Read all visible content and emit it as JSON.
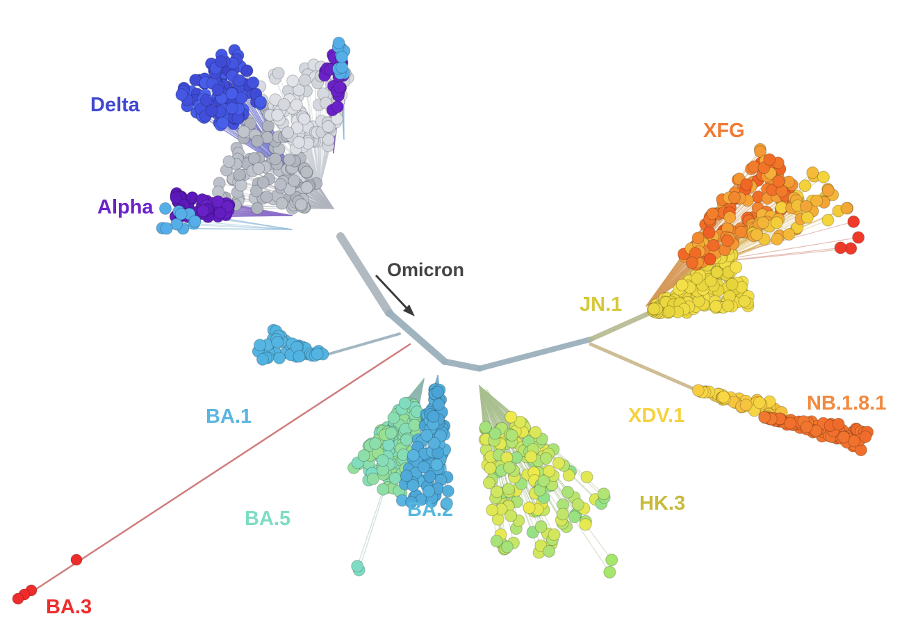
{
  "labels": {
    "delta": "Delta",
    "alpha": "Alpha",
    "omicron": "Omicron",
    "ba1": "BA.1",
    "ba5": "BA.5",
    "ba2": "BA.2",
    "ba3": "BA.3",
    "jn1": "JN.1",
    "xfg": "XFG",
    "xdv1": "XDV.1",
    "nb181": "NB.1.8.1",
    "hk3": "HK.3"
  },
  "colors": {
    "delta": "#3f47d0",
    "alpha": "#6a22c8",
    "omicron": "#444444",
    "ba1": "#5ab6e0",
    "ba5": "#7fdcc4",
    "ba2": "#55b8df",
    "ba3": "#ee2c2c",
    "jn1": "#d6c83a",
    "xfg": "#f07b35",
    "xdv1": "#f5d23e",
    "nb181": "#f18a3f",
    "hk3": "#c7bb3a",
    "trunk": "#9ab0bc",
    "early": "#c2c6cf"
  }
}
